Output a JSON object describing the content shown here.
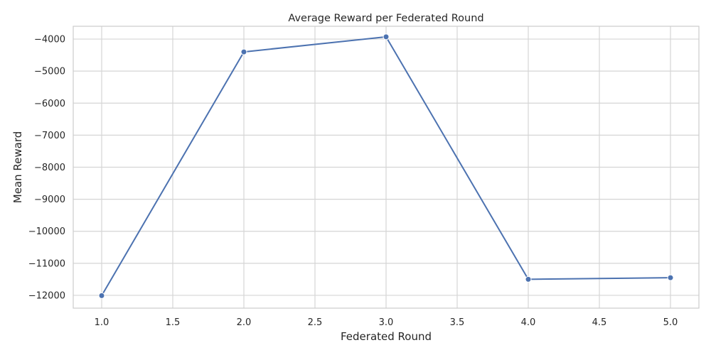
{
  "chart_data": {
    "type": "line",
    "title": "Average Reward per Federated Round",
    "xlabel": "Federated Round",
    "ylabel": "Mean Reward",
    "xlim": [
      0.8,
      5.2
    ],
    "ylim": [
      -12400,
      -3600
    ],
    "x_ticks": [
      1.0,
      1.5,
      2.0,
      2.5,
      3.0,
      3.5,
      4.0,
      4.5,
      5.0
    ],
    "x_tick_labels": [
      "1.0",
      "1.5",
      "2.0",
      "2.5",
      "3.0",
      "3.5",
      "4.0",
      "4.5",
      "5.0"
    ],
    "y_ticks": [
      -12000,
      -11000,
      -10000,
      -9000,
      -8000,
      -7000,
      -6000,
      -5000,
      -4000
    ],
    "y_tick_labels": [
      "−12000",
      "−11000",
      "−10000",
      "−9000",
      "−8000",
      "−7000",
      "−6000",
      "−5000",
      "−4000"
    ],
    "grid": true,
    "legend": null,
    "series": [
      {
        "x": [
          1.0,
          2.0,
          3.0,
          4.0,
          5.0
        ],
        "y": [
          -12010,
          -4400,
          -3930,
          -11500,
          -11450
        ],
        "color": "#4c72b0",
        "marker": "circle"
      }
    ]
  }
}
